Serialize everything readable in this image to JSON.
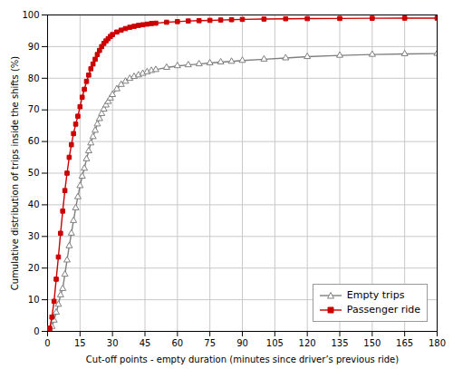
{
  "chart_data": {
    "type": "line",
    "xlabel": "Cut-off points - empty duration (minutes since driver’s previous ride)",
    "ylabel": "Cumulative distribution of trips inside the shifts (%)",
    "xlim": [
      0,
      180
    ],
    "ylim": [
      0,
      100
    ],
    "xticks": [
      0,
      15,
      30,
      45,
      60,
      75,
      90,
      105,
      120,
      135,
      150,
      165,
      180
    ],
    "yticks": [
      0,
      10,
      20,
      30,
      40,
      50,
      60,
      70,
      80,
      90,
      100
    ],
    "grid": true,
    "legend": "lower right",
    "x": [
      0,
      1,
      2,
      3,
      4,
      5,
      6,
      7,
      8,
      9,
      10,
      11,
      12,
      13,
      14,
      15,
      16,
      17,
      18,
      19,
      20,
      21,
      22,
      23,
      24,
      25,
      26,
      27,
      28,
      29,
      30,
      32,
      34,
      36,
      38,
      40,
      42,
      44,
      46,
      48,
      50,
      55,
      60,
      65,
      70,
      75,
      80,
      85,
      90,
      100,
      110,
      120,
      135,
      150,
      165,
      180
    ],
    "series": [
      {
        "name": "Empty trips",
        "color": "#7f7f7f",
        "marker": "triangle",
        "values": [
          0,
          0.5,
          1.5,
          3.5,
          6.0,
          8.5,
          11.5,
          13.5,
          18.0,
          22.5,
          27.0,
          31.0,
          35.0,
          39.0,
          42.5,
          46.0,
          49.0,
          51.5,
          54.5,
          57.0,
          59.5,
          61.5,
          63.5,
          65.5,
          67.2,
          68.8,
          70.2,
          71.5,
          72.6,
          73.7,
          74.8,
          76.6,
          78.0,
          79.0,
          79.9,
          80.5,
          81.0,
          81.5,
          82.0,
          82.4,
          82.7,
          83.4,
          83.9,
          84.2,
          84.5,
          84.8,
          85.1,
          85.3,
          85.6,
          86.0,
          86.4,
          86.8,
          87.2,
          87.5,
          87.7,
          87.8
        ]
      },
      {
        "name": "Passenger ride",
        "color": "#cc0000",
        "marker": "square",
        "values": [
          0,
          1.0,
          4.5,
          9.5,
          16.5,
          23.5,
          31.0,
          38.0,
          44.5,
          50.0,
          55.0,
          59.0,
          62.5,
          65.5,
          68.0,
          71.0,
          74.0,
          76.5,
          79.0,
          81.0,
          83.0,
          84.5,
          86.0,
          87.5,
          88.8,
          90.0,
          91.0,
          91.8,
          92.5,
          93.2,
          93.8,
          94.6,
          95.2,
          95.7,
          96.1,
          96.4,
          96.7,
          96.9,
          97.1,
          97.3,
          97.4,
          97.7,
          97.9,
          98.1,
          98.2,
          98.3,
          98.4,
          98.5,
          98.6,
          98.7,
          98.8,
          98.85,
          98.9,
          98.95,
          99.0,
          99.0
        ]
      }
    ]
  }
}
